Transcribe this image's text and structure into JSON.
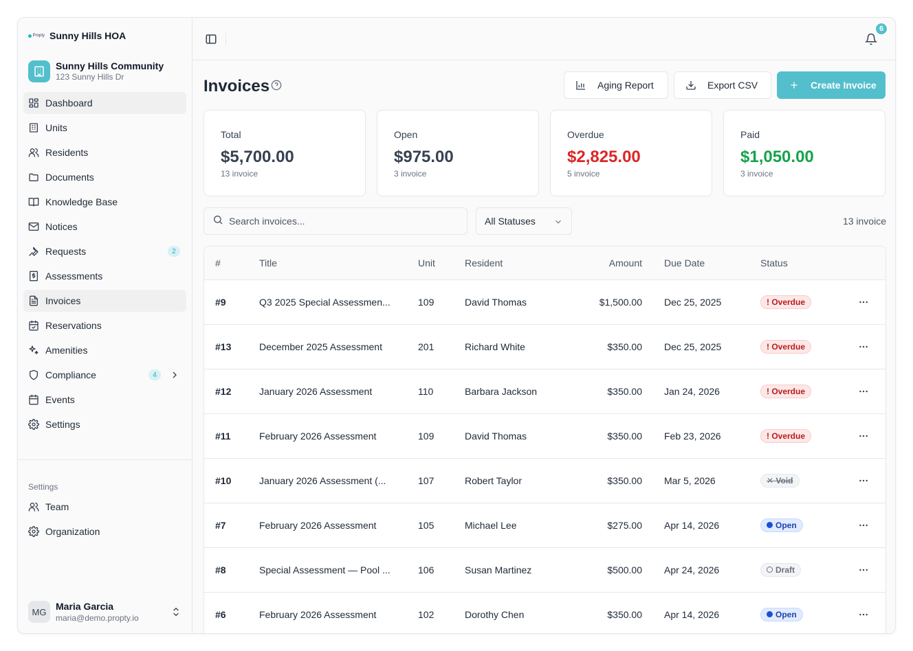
{
  "brand": {
    "logo_text": "Propty",
    "name": "Sunny Hills HOA"
  },
  "community": {
    "name": "Sunny Hills Community",
    "address": "123 Sunny Hills Dr"
  },
  "nav": [
    {
      "label": "Dashboard",
      "icon": "dashboard-icon",
      "active": true
    },
    {
      "label": "Units",
      "icon": "building-icon"
    },
    {
      "label": "Residents",
      "icon": "users-icon"
    },
    {
      "label": "Documents",
      "icon": "folder-icon"
    },
    {
      "label": "Knowledge Base",
      "icon": "book-icon"
    },
    {
      "label": "Notices",
      "icon": "mail-icon"
    },
    {
      "label": "Requests",
      "icon": "wrench-icon",
      "badge": "2"
    },
    {
      "label": "Assessments",
      "icon": "receipt-icon"
    },
    {
      "label": "Invoices",
      "icon": "file-text-icon",
      "active": true
    },
    {
      "label": "Reservations",
      "icon": "calendar-check-icon"
    },
    {
      "label": "Amenities",
      "icon": "sparkles-icon"
    },
    {
      "label": "Compliance",
      "icon": "shield-icon",
      "badge": "4",
      "chevron": true
    },
    {
      "label": "Events",
      "icon": "calendar-icon"
    },
    {
      "label": "Settings",
      "icon": "gear-icon"
    }
  ],
  "settings_section": {
    "title": "Settings",
    "items": [
      {
        "label": "Team",
        "icon": "users-icon"
      },
      {
        "label": "Organization",
        "icon": "gear-icon"
      }
    ]
  },
  "user": {
    "initials": "MG",
    "name": "Maria Garcia",
    "email": "maria@demo.propty.io"
  },
  "topbar": {
    "notification_count": "6"
  },
  "page": {
    "title": "Invoices",
    "buttons": {
      "aging": "Aging Report",
      "export": "Export CSV",
      "create": "Create Invoice"
    }
  },
  "stats": [
    {
      "label": "Total",
      "value": "$5,700.00",
      "sub": "13 invoice",
      "color": "#374151"
    },
    {
      "label": "Open",
      "value": "$975.00",
      "sub": "3 invoice",
      "color": "#374151"
    },
    {
      "label": "Overdue",
      "value": "$2,825.00",
      "sub": "5 invoice",
      "color": "#dc2626"
    },
    {
      "label": "Paid",
      "value": "$1,050.00",
      "sub": "3 invoice",
      "color": "#16a34a"
    }
  ],
  "filters": {
    "search_placeholder": "Search invoices...",
    "status_value": "All Statuses",
    "count": "13 invoice"
  },
  "table": {
    "columns": [
      "#",
      "Title",
      "Unit",
      "Resident",
      "Amount",
      "Due Date",
      "Status"
    ],
    "rows": [
      {
        "num": "#9",
        "title": "Q3 2025 Special Assessmen...",
        "unit": "109",
        "resident": "David Thomas",
        "amount": "$1,500.00",
        "due": "Dec 25, 2025",
        "status": "! Overdue",
        "kind": "overdue"
      },
      {
        "num": "#13",
        "title": "December 2025 Assessment",
        "unit": "201",
        "resident": "Richard White",
        "amount": "$350.00",
        "due": "Dec 25, 2025",
        "status": "! Overdue",
        "kind": "overdue"
      },
      {
        "num": "#12",
        "title": "January 2026 Assessment",
        "unit": "110",
        "resident": "Barbara Jackson",
        "amount": "$350.00",
        "due": "Jan 24, 2026",
        "status": "! Overdue",
        "kind": "overdue"
      },
      {
        "num": "#11",
        "title": "February 2026 Assessment",
        "unit": "109",
        "resident": "David Thomas",
        "amount": "$350.00",
        "due": "Feb 23, 2026",
        "status": "! Overdue",
        "kind": "overdue"
      },
      {
        "num": "#10",
        "title": "January 2026 Assessment (...",
        "unit": "107",
        "resident": "Robert Taylor",
        "amount": "$350.00",
        "due": "Mar 5, 2026",
        "status": "✕ Void",
        "kind": "void"
      },
      {
        "num": "#7",
        "title": "February 2026 Assessment",
        "unit": "105",
        "resident": "Michael Lee",
        "amount": "$275.00",
        "due": "Apr 14, 2026",
        "status": "Open",
        "kind": "open"
      },
      {
        "num": "#8",
        "title": "Special Assessment — Pool ...",
        "unit": "106",
        "resident": "Susan Martinez",
        "amount": "$500.00",
        "due": "Apr 24, 2026",
        "status": "Draft",
        "kind": "draft"
      },
      {
        "num": "#6",
        "title": "February 2026 Assessment",
        "unit": "102",
        "resident": "Dorothy Chen",
        "amount": "$350.00",
        "due": "Apr 14, 2026",
        "status": "Open",
        "kind": "open"
      }
    ]
  }
}
